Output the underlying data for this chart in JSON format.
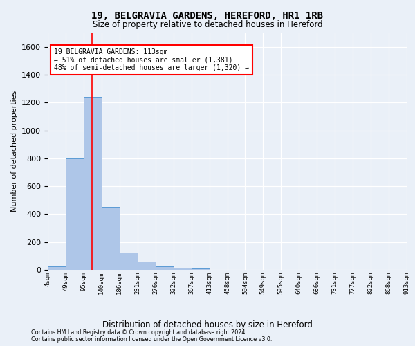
{
  "title1": "19, BELGRAVIA GARDENS, HEREFORD, HR1 1RB",
  "title2": "Size of property relative to detached houses in Hereford",
  "xlabel": "Distribution of detached houses by size in Hereford",
  "ylabel": "Number of detached properties",
  "bin_labels": [
    "4sqm",
    "49sqm",
    "95sqm",
    "140sqm",
    "186sqm",
    "231sqm",
    "276sqm",
    "322sqm",
    "367sqm",
    "413sqm",
    "458sqm",
    "504sqm",
    "549sqm",
    "595sqm",
    "640sqm",
    "686sqm",
    "731sqm",
    "777sqm",
    "822sqm",
    "868sqm",
    "913sqm"
  ],
  "bar_values": [
    25,
    800,
    1240,
    450,
    125,
    60,
    25,
    15,
    10,
    0,
    0,
    0,
    0,
    0,
    0,
    0,
    0,
    0,
    0,
    0
  ],
  "bar_color": "#aec6e8",
  "bar_edge_color": "#5b9bd5",
  "ylim": [
    0,
    1700
  ],
  "yticks": [
    0,
    200,
    400,
    600,
    800,
    1000,
    1200,
    1400,
    1600
  ],
  "red_line_x": 2.45,
  "annotation_line1": "19 BELGRAVIA GARDENS: 113sqm",
  "annotation_line2": "← 51% of detached houses are smaller (1,381)",
  "annotation_line3": "48% of semi-detached houses are larger (1,320) →",
  "footer1": "Contains HM Land Registry data © Crown copyright and database right 2024.",
  "footer2": "Contains public sector information licensed under the Open Government Licence v3.0.",
  "bg_color": "#eaf0f8",
  "grid_color": "#ffffff"
}
